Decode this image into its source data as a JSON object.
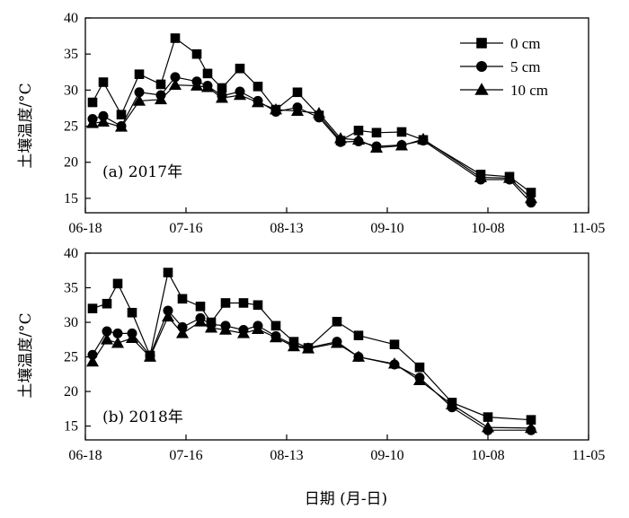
{
  "chart_data": {
    "type": "line",
    "xlabel": "日期 (月-日)",
    "ylabel": "土壤温度/°C",
    "x_ticks": [
      "06-18",
      "07-16",
      "08-13",
      "09-10",
      "10-08",
      "11-05"
    ],
    "y_ticks": [
      15,
      20,
      25,
      30,
      35,
      40
    ],
    "ylim": [
      13,
      40
    ],
    "legend": {
      "placement": "top-right",
      "panel": 0
    },
    "panels": [
      {
        "label": "(a) 2017年",
        "dates": [
          "06-20",
          "06-23",
          "06-28",
          "07-03",
          "07-09",
          "07-13",
          "07-19",
          "07-22",
          "07-26",
          "07-31",
          "08-05",
          "08-10",
          "08-16",
          "08-22",
          "08-28",
          "09-02",
          "09-07",
          "09-14",
          "09-20",
          "09-25",
          "10-06",
          "10-14",
          "10-20"
        ],
        "series": [
          {
            "name": "0 cm",
            "marker": "square",
            "values": [
              28.3,
              31.1,
              26.6,
              32.2,
              30.8,
              37.2,
              35.0,
              32.3,
              30.3,
              33.0,
              30.5,
              27.3,
              29.7,
              26.5,
              23.0,
              24.4,
              24.1,
              24.2,
              23.1,
              null,
              18.3,
              18.0,
              15.8
            ]
          },
          {
            "name": "5 cm",
            "marker": "circle",
            "values": [
              26.0,
              26.4,
              25.0,
              29.7,
              29.3,
              31.8,
              31.2,
              30.6,
              29.2,
              29.8,
              28.5,
              27.0,
              27.6,
              26.2,
              22.8,
              22.9,
              22.2,
              22.4,
              23.0,
              null,
              17.6,
              17.6,
              14.4
            ]
          },
          {
            "name": "10 cm",
            "marker": "triangle",
            "values": [
              25.4,
              25.6,
              24.9,
              28.5,
              28.7,
              30.7,
              30.6,
              30.4,
              28.9,
              29.3,
              28.3,
              27.3,
              27.1,
              26.8,
              23.3,
              23.1,
              22.0,
              22.3,
              23.2,
              null,
              17.9,
              17.8,
              15.0
            ]
          }
        ]
      },
      {
        "label": "(b) 2018年",
        "dates": [
          "06-20",
          "06-24",
          "06-27",
          "07-01",
          "07-06",
          "07-11",
          "07-15",
          "07-20",
          "07-23",
          "07-27",
          "08-01",
          "08-05",
          "08-10",
          "08-15",
          "08-19",
          "08-27",
          "09-02",
          "09-12",
          "09-19",
          "09-28",
          "10-08",
          "10-20"
        ],
        "series": [
          {
            "name": "0 cm",
            "marker": "square",
            "values": [
              32.0,
              32.7,
              35.6,
              31.4,
              25.2,
              37.2,
              33.4,
              32.3,
              30.0,
              32.8,
              32.8,
              32.5,
              29.5,
              27.2,
              26.3,
              30.1,
              28.1,
              26.8,
              23.5,
              18.4,
              16.3,
              15.9
            ]
          },
          {
            "name": "5 cm",
            "marker": "circle",
            "values": [
              25.3,
              28.7,
              28.4,
              28.4,
              25.2,
              31.7,
              29.3,
              30.6,
              29.7,
              29.5,
              28.9,
              29.5,
              28.0,
              26.7,
              26.3,
              27.2,
              25.0,
              23.9,
              22.0,
              17.7,
              14.4,
              14.4
            ]
          },
          {
            "name": "10 cm",
            "marker": "triangle",
            "values": [
              24.3,
              27.5,
              27.0,
              27.7,
              25.0,
              30.8,
              28.4,
              30.1,
              29.2,
              28.9,
              28.4,
              29.0,
              27.8,
              26.5,
              26.2,
              27.0,
              25.0,
              24.0,
              21.6,
              18.1,
              14.8,
              14.7
            ]
          }
        ]
      }
    ]
  }
}
